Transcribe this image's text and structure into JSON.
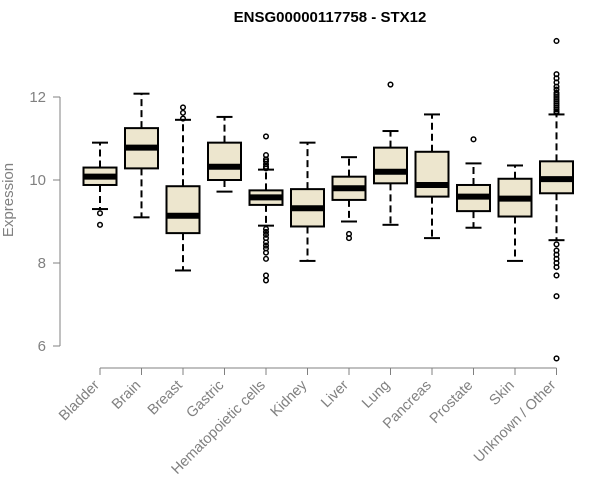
{
  "chart_data": {
    "type": "boxplot",
    "title": "ENSG00000117758 - STX12",
    "xlabel": "",
    "ylabel": "Expression",
    "ylim": [
      5.6,
      13.5
    ],
    "yticks": [
      6,
      8,
      10,
      12
    ],
    "grid": false,
    "legend": "none",
    "colors": {
      "box_fill": "#ede6ce",
      "stroke": "#000000",
      "axis": "#808080",
      "title": "#000000"
    },
    "categories": [
      "Bladder",
      "Brain",
      "Breast",
      "Gastric",
      "Hematopoietic cells",
      "Kidney",
      "Liver",
      "Lung",
      "Pancreas",
      "Prostate",
      "Skin",
      "Unknown / Other"
    ],
    "boxes": [
      {
        "category": "Bladder",
        "whisker_low": 9.3,
        "q1": 9.88,
        "median": 10.08,
        "q3": 10.3,
        "whisker_high": 10.9,
        "outliers": [
          9.2,
          8.92
        ]
      },
      {
        "category": "Brain",
        "whisker_low": 9.1,
        "q1": 10.28,
        "median": 10.78,
        "q3": 11.25,
        "whisker_high": 12.08,
        "outliers": []
      },
      {
        "category": "Breast",
        "whisker_low": 7.82,
        "q1": 8.72,
        "median": 9.14,
        "q3": 9.85,
        "whisker_high": 11.45,
        "outliers": [
          11.75,
          11.62,
          11.48
        ]
      },
      {
        "category": "Gastric",
        "whisker_low": 9.72,
        "q1": 10.0,
        "median": 10.32,
        "q3": 10.9,
        "whisker_high": 11.52,
        "outliers": []
      },
      {
        "category": "Hematopoietic cells",
        "whisker_low": 8.9,
        "q1": 9.4,
        "median": 9.58,
        "q3": 9.75,
        "whisker_high": 10.25,
        "outliers": [
          11.05,
          10.6,
          10.5,
          10.45,
          10.38,
          10.32,
          10.28,
          8.82,
          8.75,
          8.68,
          8.6,
          8.5,
          8.42,
          8.35,
          8.25,
          8.1,
          7.7,
          7.58
        ]
      },
      {
        "category": "Kidney",
        "whisker_low": 8.05,
        "q1": 8.88,
        "median": 9.32,
        "q3": 9.78,
        "whisker_high": 10.9,
        "outliers": []
      },
      {
        "category": "Liver",
        "whisker_low": 9.0,
        "q1": 9.52,
        "median": 9.8,
        "q3": 10.08,
        "whisker_high": 10.55,
        "outliers": [
          8.7,
          8.6
        ]
      },
      {
        "category": "Lung",
        "whisker_low": 8.92,
        "q1": 9.92,
        "median": 10.2,
        "q3": 10.78,
        "whisker_high": 11.18,
        "outliers": [
          12.3
        ]
      },
      {
        "category": "Pancreas",
        "whisker_low": 8.6,
        "q1": 9.6,
        "median": 9.88,
        "q3": 10.68,
        "whisker_high": 11.58,
        "outliers": []
      },
      {
        "category": "Prostate",
        "whisker_low": 8.85,
        "q1": 9.25,
        "median": 9.6,
        "q3": 9.88,
        "whisker_high": 10.4,
        "outliers": [
          10.98
        ]
      },
      {
        "category": "Skin",
        "whisker_low": 8.05,
        "q1": 9.12,
        "median": 9.55,
        "q3": 10.03,
        "whisker_high": 10.35,
        "outliers": []
      },
      {
        "category": "Unknown / Other",
        "whisker_low": 8.55,
        "q1": 9.68,
        "median": 10.02,
        "q3": 10.45,
        "whisker_high": 11.58,
        "outliers": [
          13.35,
          12.55,
          12.45,
          12.35,
          12.25,
          12.18,
          12.1,
          12.05,
          12.0,
          11.95,
          11.9,
          11.85,
          11.8,
          11.75,
          11.7,
          11.65,
          11.62,
          8.45,
          8.3,
          8.2,
          8.1,
          8.0,
          7.9,
          7.7,
          7.2,
          5.7
        ]
      }
    ]
  }
}
